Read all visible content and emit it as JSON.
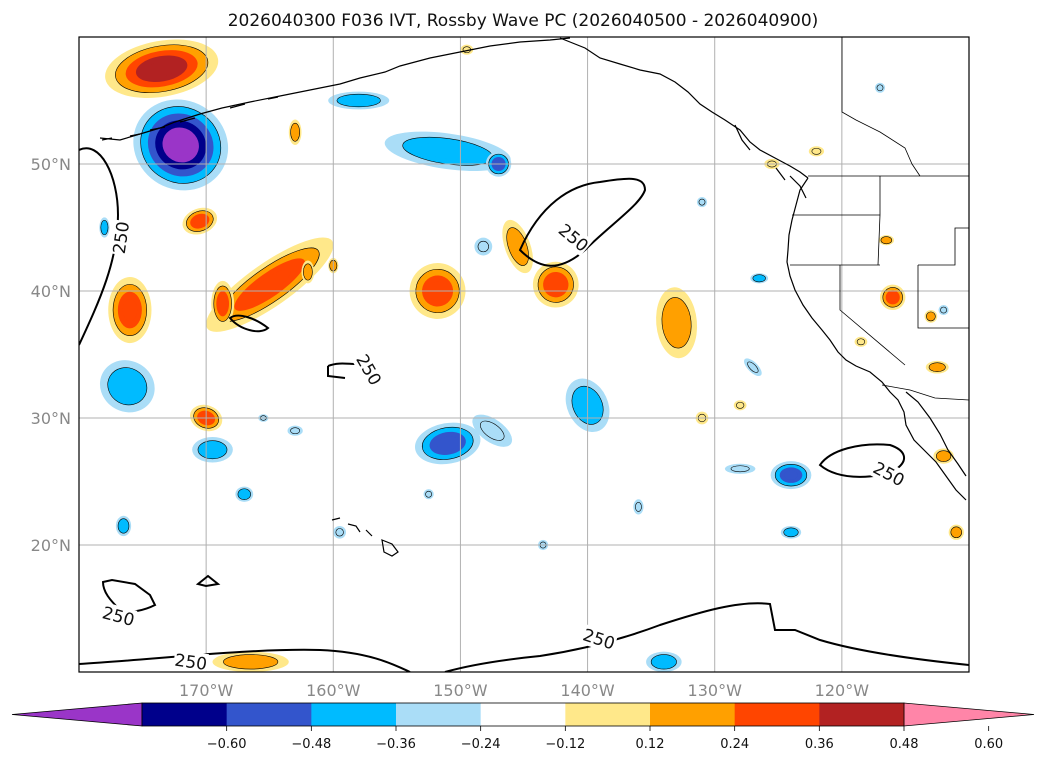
{
  "chart_data": {
    "type": "contour-map",
    "title": "2026040300 F036 IVT, Rossby Wave PC (2026040500 - 2026040900)",
    "lon_range": [
      -180,
      -110
    ],
    "lat_range": [
      10,
      60
    ],
    "x_ticks": [
      {
        "lon": -170,
        "label": "170°W"
      },
      {
        "lon": -160,
        "label": "160°W"
      },
      {
        "lon": -150,
        "label": "150°W"
      },
      {
        "lon": -140,
        "label": "140°W"
      },
      {
        "lon": -130,
        "label": "130°W"
      },
      {
        "lon": -120,
        "label": "120°W"
      }
    ],
    "y_ticks": [
      {
        "lat": 20,
        "label": "20°N"
      },
      {
        "lat": 30,
        "label": "30°N"
      },
      {
        "lat": 40,
        "label": "40°N"
      },
      {
        "lat": 50,
        "label": "50°N"
      }
    ],
    "grid": true,
    "colorbar": {
      "orientation": "horizontal",
      "extend": "both",
      "levels": [
        -0.6,
        -0.48,
        -0.36,
        -0.24,
        -0.12,
        0.12,
        0.24,
        0.36,
        0.48,
        0.6
      ],
      "colors": [
        "#9a35c8",
        "#00008b",
        "#3355cc",
        "#00bbff",
        "#aaddf7",
        "#ffffff",
        "#ffe88a",
        "#ffa000",
        "#ff4500",
        "#b22222",
        "#ff85a8"
      ],
      "tick_labels": [
        "−0.60",
        "−0.48",
        "−0.36",
        "−0.24",
        "−0.12",
        "0.12",
        "0.24",
        "0.36",
        "0.48",
        "0.60"
      ]
    },
    "contour_level": 250,
    "contour_labels": [
      {
        "text": "250",
        "lon": -176.7,
        "lat": 44.2,
        "angle": 82
      },
      {
        "text": "250",
        "lon": -141.1,
        "lat": 44.2,
        "angle": -40
      },
      {
        "text": "250",
        "lon": -157.2,
        "lat": 33.8,
        "angle": -60
      },
      {
        "text": "250",
        "lon": -116.3,
        "lat": 25.6,
        "angle": -28
      },
      {
        "text": "250",
        "lon": -176.9,
        "lat": 14.4,
        "angle": -15
      },
      {
        "text": "250",
        "lon": -171.2,
        "lat": 10.8,
        "angle": -8
      },
      {
        "text": "250",
        "lon": -139.1,
        "lat": 12.6,
        "angle": -18
      }
    ],
    "anomaly_blobs": [
      {
        "lon": -173.5,
        "lat": 57.5,
        "rx": 4.5,
        "ry": 2.2,
        "rot": 10,
        "value": 0.5
      },
      {
        "lon": -172.0,
        "lat": 51.5,
        "rx": 3.8,
        "ry": 3.5,
        "rot": -30,
        "value": -0.62
      },
      {
        "lon": -170.5,
        "lat": 45.5,
        "rx": 1.4,
        "ry": 1.0,
        "rot": 20,
        "value": 0.4
      },
      {
        "lon": -165.0,
        "lat": 40.5,
        "rx": 6.0,
        "ry": 1.7,
        "rot": 35,
        "value": 0.38
      },
      {
        "lon": -176.0,
        "lat": 38.5,
        "rx": 1.7,
        "ry": 2.6,
        "rot": 0,
        "value": 0.4
      },
      {
        "lon": -168.7,
        "lat": 39.0,
        "rx": 0.9,
        "ry": 1.8,
        "rot": 0,
        "value": 0.4
      },
      {
        "lon": -163.0,
        "lat": 52.5,
        "rx": 0.5,
        "ry": 1.0,
        "rot": 0,
        "value": 0.25
      },
      {
        "lon": -158.0,
        "lat": 55.0,
        "rx": 2.4,
        "ry": 0.7,
        "rot": 0,
        "value": -0.25
      },
      {
        "lon": -151.0,
        "lat": 51.0,
        "rx": 5.0,
        "ry": 1.4,
        "rot": -8,
        "value": -0.34
      },
      {
        "lon": -147.0,
        "lat": 50.0,
        "rx": 1.0,
        "ry": 1.0,
        "rot": 0,
        "value": -0.4
      },
      {
        "lon": -145.5,
        "lat": 43.5,
        "rx": 1.0,
        "ry": 2.2,
        "rot": 20,
        "value": 0.35
      },
      {
        "lon": -142.5,
        "lat": 40.5,
        "rx": 1.8,
        "ry": 1.8,
        "rot": 40,
        "value": 0.38
      },
      {
        "lon": -148.2,
        "lat": 43.5,
        "rx": 0.7,
        "ry": 0.7,
        "rot": 0,
        "value": -0.2
      },
      {
        "lon": -151.8,
        "lat": 40.0,
        "rx": 2.2,
        "ry": 2.2,
        "rot": 40,
        "value": 0.38
      },
      {
        "lon": -176.2,
        "lat": 32.5,
        "rx": 2.2,
        "ry": 2.0,
        "rot": -30,
        "value": -0.32
      },
      {
        "lon": -170.0,
        "lat": 30.0,
        "rx": 1.3,
        "ry": 1.0,
        "rot": -20,
        "value": 0.38
      },
      {
        "lon": -169.5,
        "lat": 27.5,
        "rx": 1.6,
        "ry": 1.0,
        "rot": 0,
        "value": -0.32
      },
      {
        "lon": -167.0,
        "lat": 24.0,
        "rx": 0.7,
        "ry": 0.6,
        "rot": 0,
        "value": -0.25
      },
      {
        "lon": -176.5,
        "lat": 21.5,
        "rx": 0.6,
        "ry": 0.8,
        "rot": 0,
        "value": -0.25
      },
      {
        "lon": -151.0,
        "lat": 28.0,
        "rx": 2.6,
        "ry": 1.6,
        "rot": 10,
        "value": -0.4
      },
      {
        "lon": -147.5,
        "lat": 29.0,
        "rx": 1.8,
        "ry": 0.9,
        "rot": -35,
        "value": -0.22
      },
      {
        "lon": -140.0,
        "lat": 31.0,
        "rx": 1.6,
        "ry": 2.2,
        "rot": 25,
        "value": -0.32
      },
      {
        "lon": -133.0,
        "lat": 37.5,
        "rx": 1.6,
        "ry": 2.8,
        "rot": 5,
        "value": 0.3
      },
      {
        "lon": -124.0,
        "lat": 25.5,
        "rx": 1.6,
        "ry": 1.1,
        "rot": 0,
        "value": -0.42
      },
      {
        "lon": -128.0,
        "lat": 26.0,
        "rx": 1.2,
        "ry": 0.4,
        "rot": 0,
        "value": -0.22
      },
      {
        "lon": -124.0,
        "lat": 21.0,
        "rx": 0.8,
        "ry": 0.5,
        "rot": 0,
        "value": -0.25
      },
      {
        "lon": -134.0,
        "lat": 10.8,
        "rx": 1.4,
        "ry": 0.8,
        "rot": 0,
        "value": -0.3
      },
      {
        "lon": -166.5,
        "lat": 10.8,
        "rx": 3.0,
        "ry": 0.8,
        "rot": 0,
        "value": 0.34
      },
      {
        "lon": -116.0,
        "lat": 39.5,
        "rx": 1.0,
        "ry": 1.0,
        "rot": 0,
        "value": 0.36
      },
      {
        "lon": -112.5,
        "lat": 34.0,
        "rx": 0.9,
        "ry": 0.5,
        "rot": 0,
        "value": 0.3
      },
      {
        "lon": -112.0,
        "lat": 27.0,
        "rx": 0.8,
        "ry": 0.6,
        "rot": 0,
        "value": 0.3
      },
      {
        "lon": -111.0,
        "lat": 21.0,
        "rx": 0.6,
        "ry": 0.6,
        "rot": 0,
        "value": 0.3
      },
      {
        "lon": -126.5,
        "lat": 41.0,
        "rx": 0.7,
        "ry": 0.4,
        "rot": 0,
        "value": -0.25
      },
      {
        "lon": -116.5,
        "lat": 44.0,
        "rx": 0.6,
        "ry": 0.4,
        "rot": 0,
        "value": 0.25
      },
      {
        "lon": -113.0,
        "lat": 38.0,
        "rx": 0.5,
        "ry": 0.5,
        "rot": 0,
        "value": 0.25
      },
      {
        "lon": -125.5,
        "lat": 50.0,
        "rx": 0.6,
        "ry": 0.4,
        "rot": 0,
        "value": 0.2
      },
      {
        "lon": -122.0,
        "lat": 51.0,
        "rx": 0.6,
        "ry": 0.4,
        "rot": 0,
        "value": 0.2
      },
      {
        "lon": -131.0,
        "lat": 30.0,
        "rx": 0.5,
        "ry": 0.5,
        "rot": 0,
        "value": 0.2
      },
      {
        "lon": -128.0,
        "lat": 31.0,
        "rx": 0.5,
        "ry": 0.4,
        "rot": 0,
        "value": 0.2
      },
      {
        "lon": -149.5,
        "lat": 59.0,
        "rx": 0.5,
        "ry": 0.4,
        "rot": 0,
        "value": 0.2
      },
      {
        "lon": -162.0,
        "lat": 41.5,
        "rx": 0.5,
        "ry": 0.9,
        "rot": 0,
        "value": 0.3
      },
      {
        "lon": -160.0,
        "lat": 42.0,
        "rx": 0.4,
        "ry": 0.6,
        "rot": 0,
        "value": 0.3
      },
      {
        "lon": -118.5,
        "lat": 36.0,
        "rx": 0.5,
        "ry": 0.4,
        "rot": 0,
        "value": 0.2
      },
      {
        "lon": -127.0,
        "lat": 34.0,
        "rx": 0.9,
        "ry": 0.4,
        "rot": -45,
        "value": -0.2
      },
      {
        "lon": -143.5,
        "lat": 20.0,
        "rx": 0.4,
        "ry": 0.4,
        "rot": 0,
        "value": -0.2
      },
      {
        "lon": -136.0,
        "lat": 23.0,
        "rx": 0.4,
        "ry": 0.6,
        "rot": 0,
        "value": -0.2
      },
      {
        "lon": -159.5,
        "lat": 21.0,
        "rx": 0.5,
        "ry": 0.5,
        "rot": 0,
        "value": -0.2
      },
      {
        "lon": -163.0,
        "lat": 29.0,
        "rx": 0.6,
        "ry": 0.4,
        "rot": 0,
        "value": -0.2
      },
      {
        "lon": -152.5,
        "lat": 24.0,
        "rx": 0.4,
        "ry": 0.4,
        "rot": 0,
        "value": -0.2
      },
      {
        "lon": -117.0,
        "lat": 56.0,
        "rx": 0.4,
        "ry": 0.4,
        "rot": 0,
        "value": -0.15
      },
      {
        "lon": -178.0,
        "lat": 45.0,
        "rx": 0.4,
        "ry": 0.8,
        "rot": 0,
        "value": -0.25
      },
      {
        "lon": -165.5,
        "lat": 30.0,
        "rx": 0.4,
        "ry": 0.3,
        "rot": 0,
        "value": -0.2
      },
      {
        "lon": -131.0,
        "lat": 47.0,
        "rx": 0.4,
        "ry": 0.4,
        "rot": 0,
        "value": -0.15
      },
      {
        "lon": -112.0,
        "lat": 38.5,
        "rx": 0.4,
        "ry": 0.4,
        "rot": 0,
        "value": -0.15
      }
    ]
  }
}
